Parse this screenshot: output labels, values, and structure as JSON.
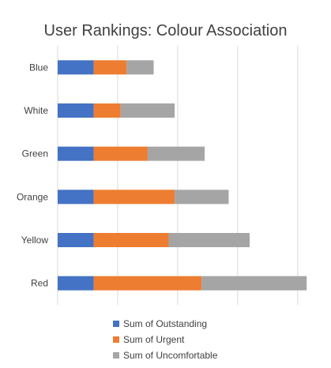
{
  "chart_data": {
    "type": "bar",
    "orientation": "horizontal",
    "stacked": true,
    "title": "User Rankings: Colour Association",
    "categories": [
      "Blue",
      "White",
      "Green",
      "Orange",
      "Yellow",
      "Red"
    ],
    "series": [
      {
        "name": "Sum of Outstanding",
        "color": "#4472C4",
        "values": [
          6,
          6,
          6,
          6,
          6,
          6
        ]
      },
      {
        "name": "Sum of Urgent",
        "color": "#ED7D31",
        "values": [
          5.5,
          4.5,
          9,
          13.5,
          12.5,
          18
        ]
      },
      {
        "name": "Sum of Uncomfortable",
        "color": "#A5A5A5",
        "values": [
          4.5,
          9,
          9.5,
          9,
          13.5,
          17.5
        ]
      }
    ],
    "xlim": [
      0,
      42
    ],
    "grid": true,
    "legend_position": "bottom"
  }
}
